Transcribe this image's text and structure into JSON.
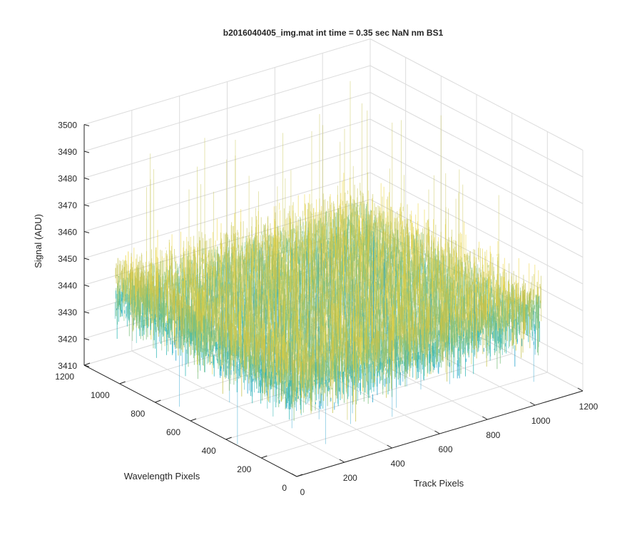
{
  "chart_data": {
    "type": "surface",
    "title": "b2016040405_img.mat int time = 0.35 sec  NaN nm BS1",
    "xlabel": "Track Pixels",
    "ylabel": "Wavelength Pixels",
    "zlabel": "Signal (ADU)",
    "xlim": [
      0,
      1200
    ],
    "ylim": [
      0,
      1200
    ],
    "zlim": [
      3410,
      3500
    ],
    "x_ticks": [
      "0",
      "200",
      "400",
      "600",
      "800",
      "1000",
      "1200"
    ],
    "y_ticks": [
      "0",
      "200",
      "400",
      "600",
      "800",
      "1000",
      "1200"
    ],
    "z_ticks": [
      "3410",
      "3420",
      "3430",
      "3440",
      "3450",
      "3460",
      "3470",
      "3480",
      "3490",
      "3500"
    ],
    "data_extent": {
      "x": [
        1,
        1024
      ],
      "y": [
        1,
        1024
      ]
    },
    "signal_mean": 3445,
    "signal_spread": [
      3425,
      3465
    ],
    "signal_peaks": [
      3410,
      3500
    ],
    "colormap": [
      "#0072BD",
      "#1A9DCB",
      "#2FB7B5",
      "#7CC07E",
      "#C5C24A",
      "#EFD63A"
    ],
    "grid": true
  }
}
